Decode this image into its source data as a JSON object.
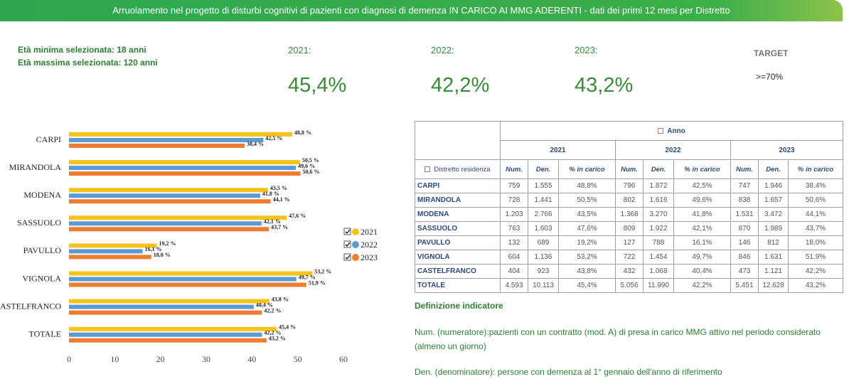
{
  "header": {
    "title": "Arruolamento nel progetto di disturbi cognitivi di pazienti con diagnosi di demenza IN CARICO AI MMG ADERENTI - dati dei primi 12 mesi per Distretto"
  },
  "filters": [
    "Età minima selezionata: 18 anni",
    "Età massima selezionata: 120 anni"
  ],
  "kpis": [
    {
      "label": "2021:",
      "value": "45,4%"
    },
    {
      "label": "2022:",
      "value": "42,2%"
    },
    {
      "label": "2023:",
      "value": "43,2%"
    }
  ],
  "target": {
    "label": "TARGET",
    "value": ">=70%"
  },
  "chart_data": {
    "type": "hbar",
    "categories": [
      "CARPI",
      "MIRANDOLA",
      "MODENA",
      "SASSUOLO",
      "PAVULLO",
      "VIGNOLA",
      "CASTELFRANCO",
      "TOTALE"
    ],
    "series": [
      {
        "name": "2021",
        "color": "#f7c31a",
        "values": [
          48.8,
          50.5,
          43.5,
          47.6,
          19.2,
          53.2,
          43.8,
          45.4
        ],
        "value_labels": [
          "48,8 %",
          "50,5 %",
          "43,5 %",
          "47,6 %",
          "19,2 %",
          "53,2 %",
          "43,8 %",
          "45,4 %"
        ]
      },
      {
        "name": "2022",
        "color": "#5b9bd5",
        "values": [
          42.5,
          49.6,
          41.8,
          42.1,
          16.1,
          49.7,
          40.4,
          42.2
        ],
        "value_labels": [
          "42,5 %",
          "49,6 %",
          "41,8 %",
          "42,1 %",
          "16,1 %",
          "49,7 %",
          "40,4 %",
          "42,2 %"
        ]
      },
      {
        "name": "2023",
        "color": "#ed7d31",
        "values": [
          38.4,
          50.6,
          44.1,
          43.7,
          18.0,
          51.9,
          42.2,
          43.2
        ],
        "value_labels": [
          "38,4 %",
          "50,6 %",
          "44,1 %",
          "43,7 %",
          "18,0 %",
          "51,9 %",
          "42,2 %",
          "43,2 %"
        ]
      }
    ],
    "xlim": [
      0,
      60
    ],
    "xticks": [
      0,
      10,
      20,
      30,
      40,
      50,
      60
    ],
    "grid": false,
    "legend": "right"
  },
  "table": {
    "group_header": "Anno",
    "years": [
      "2021",
      "2022",
      "2023"
    ],
    "columns": [
      "Distretto residenza",
      "Num.",
      "Den.",
      "% in carico"
    ],
    "rows": [
      [
        "CARPI",
        "759",
        "1.555",
        "48,8%",
        "796",
        "1.872",
        "42,5%",
        "747",
        "1.946",
        "38,4%"
      ],
      [
        "MIRANDOLA",
        "728",
        "1.441",
        "50,5%",
        "802",
        "1.616",
        "49,6%",
        "838",
        "1.657",
        "50,6%"
      ],
      [
        "MODENA",
        "1.203",
        "2.766",
        "43,5%",
        "1.368",
        "3.270",
        "41,8%",
        "1.531",
        "3.472",
        "44,1%"
      ],
      [
        "SASSUOLO",
        "763",
        "1.603",
        "47,6%",
        "809",
        "1.922",
        "42,1%",
        "870",
        "1.989",
        "43,7%"
      ],
      [
        "PAVULLO",
        "132",
        "689",
        "19,2%",
        "127",
        "788",
        "16,1%",
        "146",
        "812",
        "18,0%"
      ],
      [
        "VIGNOLA",
        "604",
        "1.136",
        "53,2%",
        "722",
        "1.454",
        "49,7%",
        "846",
        "1.631",
        "51,9%"
      ],
      [
        "CASTELFRANCO",
        "404",
        "923",
        "43,8%",
        "432",
        "1.068",
        "40,4%",
        "473",
        "1.121",
        "42,2%"
      ],
      [
        "TOTALE",
        "4.593",
        "10.113",
        "45,4%",
        "5.056",
        "11.990",
        "42,2%",
        "5.451",
        "12.628",
        "43,2%"
      ]
    ]
  },
  "definition": {
    "title": "Definizione indicatore",
    "lines": [
      "Num. (numeratore):pazienti con un contratto (mod. A) di presa in carico MMG attivo nel periodo considerato (almeno un giorno)",
      "Den. (denominatore): persone con demenza al 1° gennaio dell'anno di riferimento"
    ]
  }
}
